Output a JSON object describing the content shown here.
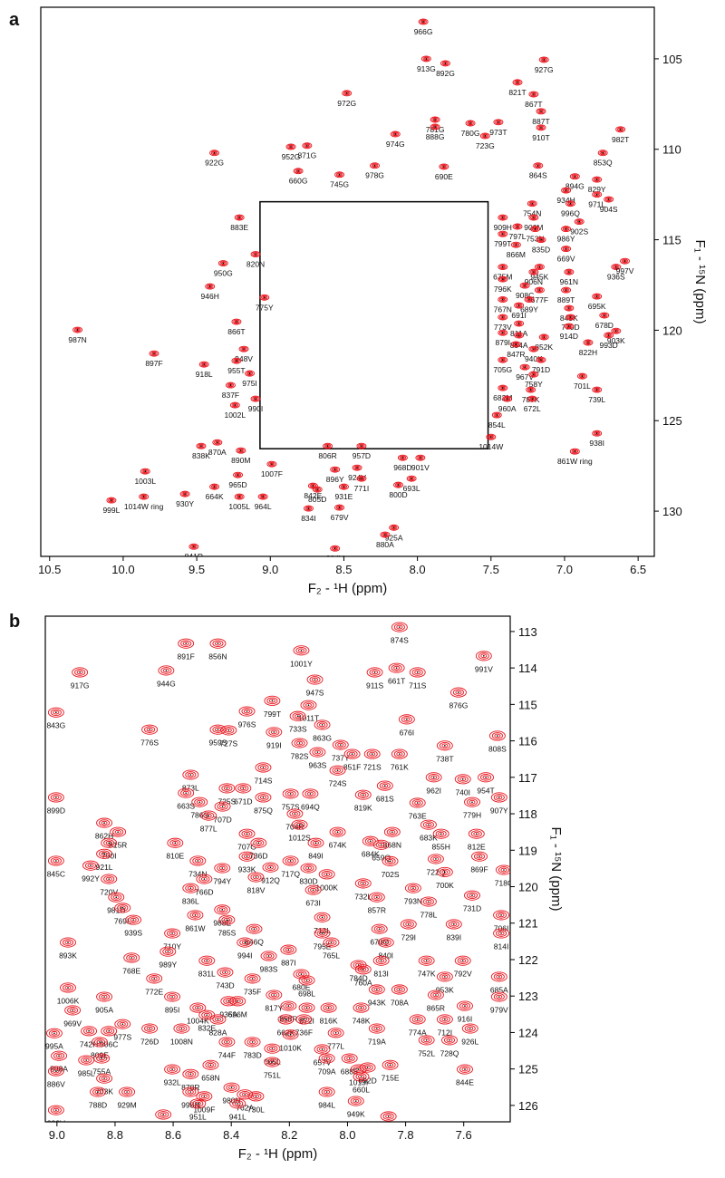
{
  "chart_data": [
    {
      "type": "scatter",
      "panel": "a",
      "xlabel": "F₂ - ¹H (ppm)",
      "ylabel": "F₁ - ¹⁵N (ppm)",
      "color": "#e8141c",
      "xlim": [
        10.56,
        6.39
      ],
      "ylim": [
        102.15,
        132.5
      ],
      "xticks": [
        10.5,
        {
          "value": 10,
          "label": "10.0"
        },
        9.5,
        {
          "value": 9,
          "label": "9.0"
        },
        8.5,
        {
          "value": 8,
          "label": "8.0"
        },
        7.5,
        {
          "value": 7,
          "label": "7.0"
        },
        6.5
      ],
      "yticks": [
        105,
        110,
        115,
        120,
        125,
        130
      ],
      "inset_box": {
        "xlim": [
          9.07,
          7.52
        ],
        "ylim": [
          112.9,
          126.55
        ]
      },
      "labels": [
        "966G",
        "913G",
        "892G",
        "821T",
        "927G",
        "972G",
        "867T",
        "887T",
        "781G",
        "974G",
        "780G",
        "973T",
        "888G",
        "723G",
        "910T",
        "982T",
        "952G",
        "871G",
        "922G",
        "978G",
        "690E",
        "853Q",
        "864S",
        "894G",
        "660G",
        "745G",
        "829Y",
        "934H",
        "971L",
        "996Q",
        "904S",
        "754N",
        "883E",
        "909H",
        "900M",
        "902S",
        "797L",
        "753N",
        "986Y",
        "799T",
        "835D",
        "866M",
        "669V",
        "950G",
        "936S",
        "820N",
        "675M",
        "945K",
        "997V",
        "906N",
        "961N",
        "796K",
        "908C",
        "677F",
        "889T",
        "946H",
        "695K",
        "775Y",
        "767N",
        "689Y",
        "691I",
        "849K",
        "678D",
        "773V",
        "770D",
        "987N",
        "866T",
        "811A",
        "914D",
        "879I",
        "903K",
        "993D",
        "897F",
        "948V",
        "884A",
        "852K",
        "822H",
        "847R",
        "940K",
        "955T",
        "705G",
        "791D",
        "918L",
        "967V",
        "975I",
        "758Y",
        "701L",
        "837F",
        "682M",
        "787K",
        "739L",
        "960A",
        "672L",
        "990I",
        "1002L",
        "854L",
        "870A",
        "938I",
        "1014W",
        "806R",
        "957D",
        "890M",
        "861W ring",
        "838K",
        "968D",
        "901V",
        "1007F",
        "896Y",
        "924V",
        "1003L",
        "965D",
        "771I",
        "842E",
        "805D",
        "931E",
        "693L",
        "800D",
        "664K",
        "1005L",
        "964L",
        "1014W ring",
        "930Y",
        "999L",
        "834I",
        "679V",
        "925A",
        "880A",
        "804V",
        "841R"
      ],
      "x": [
        7.96,
        7.94,
        7.81,
        7.32,
        7.14,
        8.48,
        7.21,
        7.16,
        7.88,
        8.15,
        7.64,
        7.45,
        7.88,
        7.54,
        7.16,
        6.62,
        8.86,
        8.75,
        9.38,
        8.29,
        7.82,
        6.74,
        7.18,
        6.93,
        8.81,
        8.53,
        6.78,
        6.99,
        6.78,
        6.96,
        6.7,
        7.22,
        9.21,
        7.42,
        7.21,
        6.9,
        7.32,
        7.2,
        6.99,
        7.42,
        7.16,
        7.33,
        6.99,
        9.32,
        6.65,
        9.1,
        7.42,
        7.17,
        6.59,
        7.21,
        6.97,
        7.42,
        7.27,
        7.17,
        6.99,
        9.41,
        6.78,
        9.04,
        7.42,
        7.24,
        7.31,
        6.97,
        6.73,
        7.42,
        6.96,
        10.31,
        9.23,
        7.31,
        6.97,
        7.42,
        6.65,
        6.7,
        9.79,
        9.18,
        7.31,
        7.14,
        6.84,
        7.33,
        7.21,
        9.23,
        7.42,
        7.16,
        9.45,
        7.27,
        9.14,
        7.21,
        6.88,
        9.27,
        7.42,
        7.23,
        6.78,
        7.39,
        7.22,
        9.1,
        9.24,
        7.46,
        9.36,
        6.78,
        7.5,
        8.61,
        8.38,
        9.2,
        6.93,
        9.47,
        8.1,
        7.98,
        8.99,
        8.56,
        8.41,
        9.85,
        9.22,
        8.38,
        8.71,
        8.68,
        8.5,
        8.04,
        8.13,
        9.38,
        9.21,
        9.05,
        9.86,
        9.58,
        10.08,
        8.74,
        8.53,
        8.16,
        8.22,
        8.56,
        9.52
      ],
      "y": [
        102.95,
        105.0,
        105.25,
        106.3,
        105.05,
        106.9,
        106.96,
        107.9,
        108.36,
        109.16,
        108.56,
        108.5,
        108.76,
        109.26,
        108.8,
        108.9,
        109.86,
        109.8,
        110.2,
        110.9,
        110.96,
        110.2,
        110.9,
        111.5,
        111.2,
        111.4,
        111.67,
        112.27,
        112.5,
        113.0,
        112.77,
        113.0,
        113.77,
        113.77,
        113.77,
        114.0,
        114.27,
        114.4,
        114.4,
        114.68,
        115.0,
        115.28,
        115.5,
        116.3,
        116.5,
        115.8,
        116.5,
        116.5,
        116.18,
        116.78,
        116.78,
        117.18,
        117.53,
        117.78,
        117.78,
        117.58,
        118.13,
        118.19,
        118.3,
        118.3,
        118.63,
        118.78,
        119.18,
        119.28,
        119.28,
        119.98,
        119.53,
        119.63,
        119.78,
        120.14,
        120.04,
        120.28,
        121.29,
        121.04,
        120.28,
        120.38,
        120.68,
        120.78,
        121.04,
        121.69,
        121.64,
        121.64,
        121.89,
        122.04,
        122.39,
        122.44,
        122.54,
        123.04,
        123.19,
        123.29,
        123.29,
        123.79,
        123.79,
        123.79,
        124.14,
        124.69,
        126.2,
        125.7,
        125.9,
        126.4,
        126.4,
        126.65,
        126.7,
        126.4,
        127.05,
        127.05,
        127.4,
        127.7,
        127.6,
        127.8,
        128.0,
        128.2,
        128.6,
        128.8,
        128.65,
        128.2,
        128.55,
        128.65,
        129.2,
        129.2,
        129.2,
        129.05,
        129.4,
        129.85,
        129.8,
        130.91,
        131.3,
        132.06,
        131.96
      ]
    },
    {
      "type": "scatter",
      "panel": "b",
      "xlabel": "F₂ - ¹H (ppm)",
      "ylabel": "F₁ - ¹⁵N (ppm)",
      "color": "#e8141c",
      "xlim": [
        9.04,
        7.44
      ],
      "ylim": [
        112.58,
        126.45
      ],
      "xticks": [
        {
          "value": 9,
          "label": "9.0"
        },
        8.8,
        8.6,
        8.4,
        8.2,
        {
          "value": 8,
          "label": "8.0"
        },
        7.8,
        7.6
      ],
      "yticks": [
        113,
        114,
        115,
        116,
        117,
        118,
        119,
        120,
        121,
        122,
        123,
        124,
        125,
        126
      ],
      "labels": [
        "891F",
        "856N",
        "1001Y",
        "874S",
        "991V",
        "944G",
        "917G",
        "911S",
        "661T",
        "711S",
        "876G",
        "947S",
        "799T",
        "1011T",
        "733S",
        "843G",
        "776S",
        "976S",
        "863G",
        "676I",
        "727S",
        "959S",
        "919I",
        "737Y",
        "808S",
        "738T",
        "782S",
        "851F",
        "721S",
        "761K",
        "714S",
        "963S",
        "724S",
        "873L",
        "681S",
        "954T",
        "725S",
        "671D",
        "962I",
        "740I",
        "907Y",
        "757S",
        "663S",
        "786S",
        "875Q",
        "707D",
        "763E",
        "694Q",
        "819K",
        "877L",
        "899D",
        "704R",
        "779H",
        "862H",
        "1012S",
        "683K",
        "674K",
        "868N",
        "815R",
        "855H",
        "812E",
        "810E",
        "707G",
        "684K",
        "790I",
        "849I",
        "659Q",
        "933K",
        "736D",
        "921L",
        "702S",
        "722Q",
        "869F",
        "717Q",
        "845C",
        "912Q",
        "830D",
        "734N",
        "992Y",
        "700K",
        "718C",
        "1000K",
        "766D",
        "720V",
        "794Y",
        "818V",
        "732L",
        "793N",
        "981D",
        "836L",
        "857R",
        "731D",
        "673I",
        "778L",
        "769L",
        "988E",
        "861W",
        "706I",
        "939S",
        "785S",
        "713L",
        "846Q",
        "839I",
        "670Q",
        "729I",
        "795E",
        "814I",
        "710Y",
        "893K",
        "994I",
        "765L",
        "840I",
        "887I",
        "989Y",
        "768E",
        "831L",
        "983S",
        "813I",
        "747K",
        "792V",
        "743D",
        "784D",
        "760A",
        "680E",
        "685A",
        "953K",
        "772E",
        "735F",
        "698L",
        "708A",
        "865R",
        "943K",
        "979V",
        "1006K",
        "817Y",
        "858R",
        "895I",
        "696M",
        "935A",
        "872I",
        "1004K",
        "905A",
        "969V",
        "662K",
        "736F",
        "816K",
        "748K",
        "916I",
        "828A",
        "832E",
        "726D",
        "977S",
        "1008N",
        "742H",
        "906C",
        "774A",
        "712I",
        "995A",
        "1010K",
        "744F",
        "783D",
        "777L",
        "719A",
        "809E",
        "665L",
        "657V",
        "752L",
        "728Q",
        "926L",
        "898A",
        "755A",
        "985L",
        "751L",
        "709A",
        "688E",
        "932L",
        "878R",
        "658N",
        "886V",
        "715E",
        "980N",
        "692D",
        "762A",
        "703K",
        "1013I",
        "660L",
        "844E",
        "788D",
        "929M",
        "998N",
        "1009F",
        "951L",
        "941L",
        "984L",
        "730L",
        "949K",
        "833V",
        "802K",
        "801I"
      ],
      "x": [
        8.556,
        8.446,
        8.159,
        7.821,
        7.531,
        8.624,
        8.921,
        7.906,
        7.831,
        7.759,
        7.618,
        8.112,
        8.259,
        8.134,
        8.171,
        9.003,
        8.681,
        8.346,
        8.087,
        7.796,
        8.409,
        8.446,
        8.253,
        8.024,
        7.484,
        7.665,
        8.165,
        7.984,
        7.915,
        7.821,
        8.29,
        8.103,
        8.034,
        8.54,
        7.871,
        7.524,
        8.415,
        8.359,
        7.703,
        7.603,
        7.478,
        8.196,
        8.556,
        8.509,
        8.29,
        8.43,
        7.759,
        8.128,
        7.946,
        8.478,
        9.003,
        8.181,
        7.571,
        8.837,
        8.165,
        7.721,
        8.034,
        7.846,
        8.79,
        7.678,
        7.556,
        8.593,
        8.346,
        7.921,
        8.821,
        8.109,
        7.884,
        8.346,
        8.306,
        8.837,
        7.853,
        7.696,
        7.546,
        8.196,
        9.003,
        8.265,
        8.134,
        8.515,
        8.884,
        7.665,
        7.462,
        8.071,
        8.493,
        8.821,
        8.431,
        8.315,
        7.946,
        7.774,
        8.796,
        8.54,
        7.899,
        7.571,
        8.118,
        7.721,
        8.774,
        8.431,
        8.524,
        7.471,
        8.737,
        8.415,
        8.087,
        8.321,
        7.634,
        7.89,
        7.79,
        8.087,
        7.471,
        8.603,
        8.962,
        8.353,
        8.056,
        7.868,
        8.203,
        8.618,
        8.743,
        8.484,
        8.271,
        7.884,
        7.728,
        7.603,
        8.421,
        7.962,
        7.946,
        8.159,
        7.478,
        7.665,
        8.665,
        8.327,
        8.14,
        7.821,
        7.696,
        7.899,
        7.478,
        8.962,
        8.253,
        8.203,
        8.603,
        8.378,
        8.409,
        8.14,
        8.515,
        8.837,
        8.946,
        8.212,
        8.15,
        8.065,
        7.953,
        7.596,
        8.446,
        8.484,
        8.681,
        8.774,
        8.571,
        8.89,
        8.821,
        7.759,
        7.665,
        9.009,
        8.196,
        8.415,
        8.327,
        8.04,
        7.899,
        8.853,
        8.259,
        8.087,
        7.728,
        7.649,
        7.578,
        8.993,
        8.846,
        8.899,
        8.259,
        8.071,
        7.993,
        8.603,
        8.54,
        8.471,
        9.003,
        7.853,
        8.399,
        7.931,
        8.353,
        8.837,
        7.962,
        7.953,
        7.596,
        8.859,
        8.759,
        8.54,
        8.493,
        8.515,
        8.378,
        8.071,
        8.315,
        7.971,
        9.003,
        8.634,
        7.859
      ],
      "y": [
        113.33,
        113.33,
        113.52,
        112.88,
        113.67,
        114.07,
        114.12,
        114.12,
        114.0,
        114.12,
        114.67,
        114.32,
        114.9,
        115.02,
        115.32,
        115.22,
        115.69,
        115.19,
        115.56,
        115.41,
        115.71,
        115.69,
        115.76,
        116.11,
        115.86,
        116.13,
        116.06,
        116.36,
        116.36,
        116.36,
        116.73,
        116.31,
        116.81,
        116.93,
        117.23,
        117.0,
        117.3,
        117.3,
        117.0,
        117.05,
        117.55,
        117.45,
        117.43,
        117.68,
        117.55,
        117.8,
        117.7,
        117.45,
        117.48,
        118.05,
        117.55,
        118.0,
        117.68,
        118.25,
        118.3,
        118.3,
        118.5,
        118.5,
        118.5,
        118.55,
        118.55,
        118.8,
        118.55,
        118.75,
        118.8,
        118.8,
        118.85,
        119.17,
        118.8,
        119.1,
        119.3,
        119.24,
        119.17,
        119.29,
        119.29,
        119.47,
        119.49,
        119.29,
        119.42,
        119.6,
        119.54,
        119.66,
        119.79,
        119.79,
        119.49,
        119.74,
        119.91,
        120.04,
        120.29,
        120.04,
        120.29,
        120.24,
        120.09,
        120.41,
        120.58,
        120.63,
        120.78,
        120.78,
        120.91,
        120.91,
        120.84,
        121.16,
        121.03,
        121.16,
        121.03,
        121.28,
        121.28,
        121.28,
        121.53,
        121.53,
        121.53,
        121.53,
        121.73,
        121.78,
        121.95,
        122.03,
        121.9,
        122.03,
        122.03,
        122.03,
        122.35,
        122.15,
        122.27,
        122.4,
        122.47,
        122.47,
        122.52,
        122.52,
        122.57,
        122.82,
        122.97,
        122.82,
        123.02,
        122.77,
        122.97,
        123.27,
        123.02,
        123.14,
        123.14,
        123.32,
        123.32,
        123.02,
        123.39,
        123.64,
        123.64,
        123.32,
        123.32,
        123.27,
        123.64,
        123.52,
        123.89,
        123.77,
        123.89,
        123.96,
        123.96,
        123.64,
        123.64,
        124.02,
        124.06,
        124.26,
        124.26,
        124.01,
        123.89,
        124.26,
        124.44,
        124.46,
        124.21,
        124.21,
        123.89,
        124.64,
        124.71,
        124.76,
        124.81,
        124.71,
        124.71,
        125.01,
        125.14,
        124.89,
        125.06,
        124.89,
        125.51,
        124.96,
        125.7,
        125.26,
        125.01,
        125.21,
        125.01,
        125.63,
        125.63,
        125.63,
        125.75,
        125.95,
        125.95,
        125.63,
        125.75,
        125.88,
        126.13,
        126.25,
        126.3
      ]
    }
  ]
}
